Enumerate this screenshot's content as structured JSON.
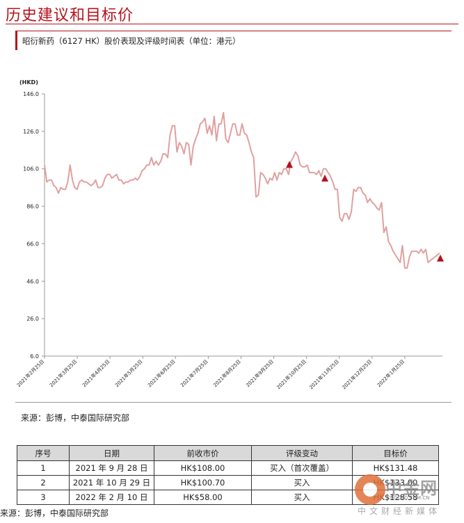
{
  "title": "历史建议和目标价",
  "subtitle": "昭衍新药（6127 HK）股价表现及评级时间表（单位：港元）",
  "chart_data": {
    "type": "line",
    "unit_label": "(HKD)",
    "ylim": [
      6.0,
      146.0
    ],
    "yticks": [
      "146.0",
      "126.0",
      "106.0",
      "86.0",
      "66.0",
      "46.0",
      "26.0",
      "6.0"
    ],
    "x_labels": [
      "2021年2月25日",
      "2021年3月25日",
      "2021年4月25日",
      "2021年5月25日",
      "2021年6月25日",
      "2021年7月25日",
      "2021年8月25日",
      "2021年9月25日",
      "2021年10月25日",
      "2021年11月25日",
      "2021年12月25日",
      "2022年1月25日"
    ],
    "series": [
      {
        "color": "#e0a0a0",
        "values": [
          108,
          99,
          100,
          100,
          97,
          96,
          93,
          96,
          95,
          95,
          99,
          108,
          100,
          96,
          95,
          99,
          100,
          99,
          99,
          98,
          97,
          98,
          100,
          96,
          96,
          97,
          101,
          103,
          103,
          101,
          102,
          103,
          100,
          100,
          98,
          99,
          99,
          100,
          100,
          101,
          100,
          102,
          105,
          106,
          108,
          108,
          112,
          108,
          110,
          108,
          110,
          114,
          114,
          112,
          124,
          129,
          129,
          115,
          120,
          118,
          114,
          120,
          119,
          108,
          118,
          122,
          125,
          130,
          131,
          133,
          125,
          129,
          124,
          134,
          121,
          130,
          130,
          136,
          122,
          120,
          125,
          130,
          130,
          124,
          124,
          130,
          125,
          124,
          120,
          115,
          112,
          91,
          92,
          104,
          103,
          101,
          98,
          101,
          100,
          104,
          100,
          104,
          103,
          106,
          106,
          103,
          110,
          112,
          115,
          113,
          108,
          107,
          107,
          108,
          104,
          104,
          104,
          103,
          105,
          102,
          106,
          106,
          104,
          102,
          99,
          95,
          95,
          80,
          78,
          82,
          82,
          79,
          83,
          95,
          94,
          96,
          96,
          93,
          92,
          88,
          90,
          88,
          87,
          85,
          84,
          88,
          72,
          75,
          67,
          65,
          62,
          60,
          58,
          56,
          65,
          53,
          53,
          59,
          62,
          62,
          62,
          61,
          63,
          61,
          63,
          56,
          57,
          58,
          59,
          60,
          61
        ]
      }
    ],
    "rating_markers": [
      {
        "date": "2021年9月28日",
        "price": 108.0
      },
      {
        "date": "2021年10月29日",
        "price": 100.7
      },
      {
        "date": "2022年2月10日",
        "price": 58.0
      }
    ],
    "colors": {
      "line": "#e0a0a0",
      "marker": "#b5121b",
      "axis": "#888888",
      "accent": "#b5121b"
    }
  },
  "source1": "来源：彭博，中泰国际研究部",
  "table": {
    "headers": [
      "序号",
      "日期",
      "前收市价",
      "评级变动",
      "目标价"
    ],
    "rows": [
      [
        "1",
        "2021 年 9 月 28 日",
        "HK$108.00",
        "买入（首次覆盖）",
        "HK$131.48"
      ],
      [
        "2",
        "2021 年 10 月 29 日",
        "HK$100.70",
        "买入",
        "HK$133.00"
      ],
      [
        "3",
        "2022 年 2 月 10 日",
        "HK$58.00",
        "买入",
        "HK$128.58"
      ]
    ]
  },
  "source2": "来源：彭博，中泰国际研究部",
  "watermark": {
    "name": "中金网",
    "url": "CNGOLD.COM.CN",
    "slogan": "中文财经新媒体"
  }
}
